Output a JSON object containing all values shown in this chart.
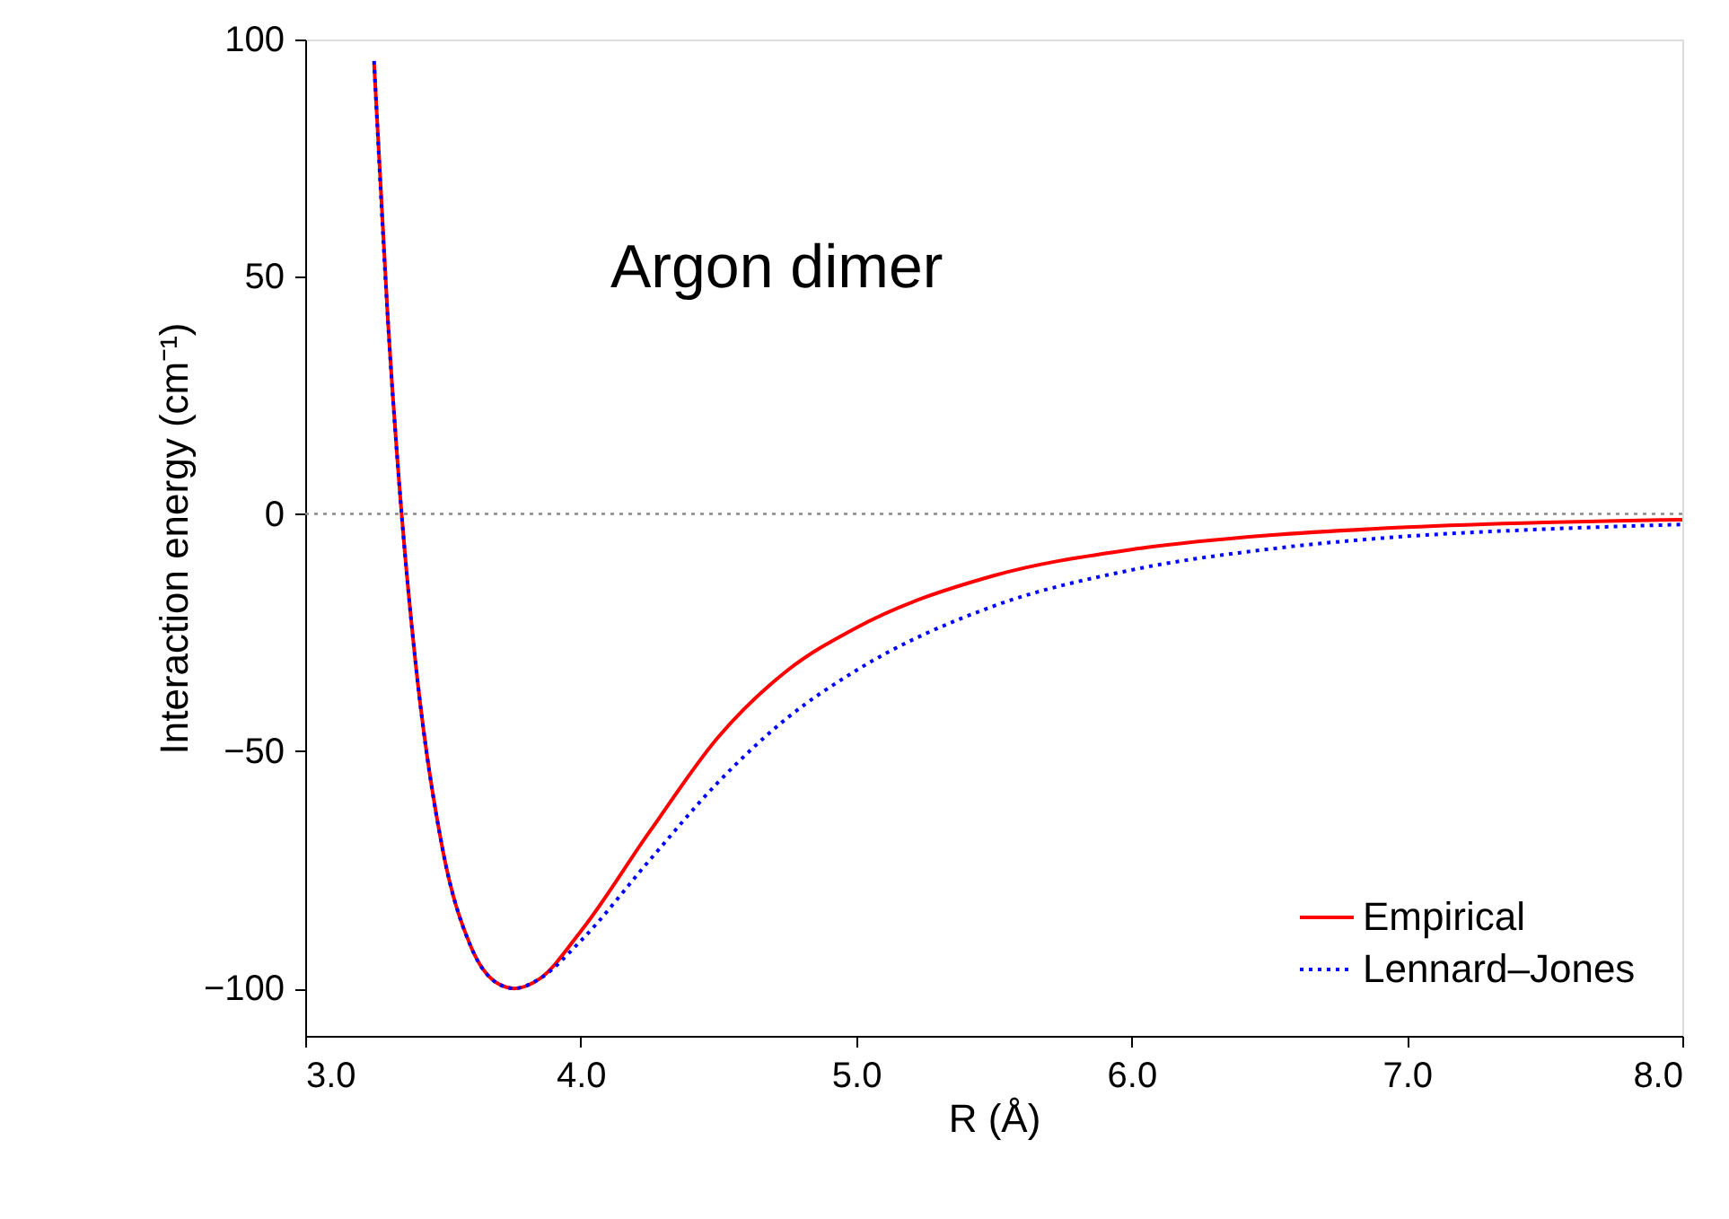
{
  "chart_data": {
    "type": "line",
    "annotations": [
      "Argon dimer"
    ],
    "xlabel": "R (Å)",
    "ylabel": "Interaction energy (cm⁻¹)",
    "xlim": [
      3.0,
      8.0
    ],
    "ylim": [
      -110,
      100
    ],
    "xticks": [
      {
        "value": 3,
        "label": "3.0"
      },
      {
        "value": 4,
        "label": "4.0"
      },
      {
        "value": 5,
        "label": "5.0"
      },
      {
        "value": 6,
        "label": "6.0"
      },
      {
        "value": 7,
        "label": "7.0"
      },
      {
        "value": 8,
        "label": "8.0"
      }
    ],
    "yticks": [
      -100,
      -50,
      0,
      50,
      100
    ],
    "grid": false,
    "legend": "bottom right",
    "marker": "none",
    "ref_lines": [
      {
        "axis": "y",
        "value": 0,
        "color": "#888888",
        "line_style": "dotted"
      }
    ],
    "series": [
      {
        "name": "Empirical",
        "color": "#ff0000",
        "line_style": "solid",
        "x": [
          3.25,
          3.3,
          3.35,
          3.4,
          3.5,
          3.6,
          3.7,
          3.76,
          3.85,
          4.0,
          4.25,
          4.5,
          4.75,
          5.0,
          5.5,
          6.0,
          6.5,
          7.0,
          7.5,
          8.0
        ],
        "values": [
          95,
          41,
          0,
          -31,
          -71,
          -91,
          -99,
          -100,
          -98,
          -88,
          -67,
          -47,
          -33,
          -24,
          -13,
          -7.5,
          -4.5,
          -2.8,
          -1.8,
          -1.2
        ]
      },
      {
        "name": "Lennard–Jones",
        "color": "#0000ff",
        "line_style": "dotted",
        "x": [
          3.25,
          3.3,
          3.35,
          3.4,
          3.5,
          3.6,
          3.7,
          3.76,
          3.85,
          4.0,
          4.25,
          4.5,
          4.75,
          5.0,
          5.5,
          6.0,
          6.5,
          7.0,
          7.5,
          8.0
        ],
        "values": [
          95.5,
          41,
          0,
          -31,
          -71,
          -91,
          -99,
          -100,
          -98,
          -90,
          -73,
          -56.5,
          -43,
          -33,
          -19.4,
          -11.8,
          -7.4,
          -4.7,
          -3.2,
          -2.2
        ]
      }
    ]
  }
}
